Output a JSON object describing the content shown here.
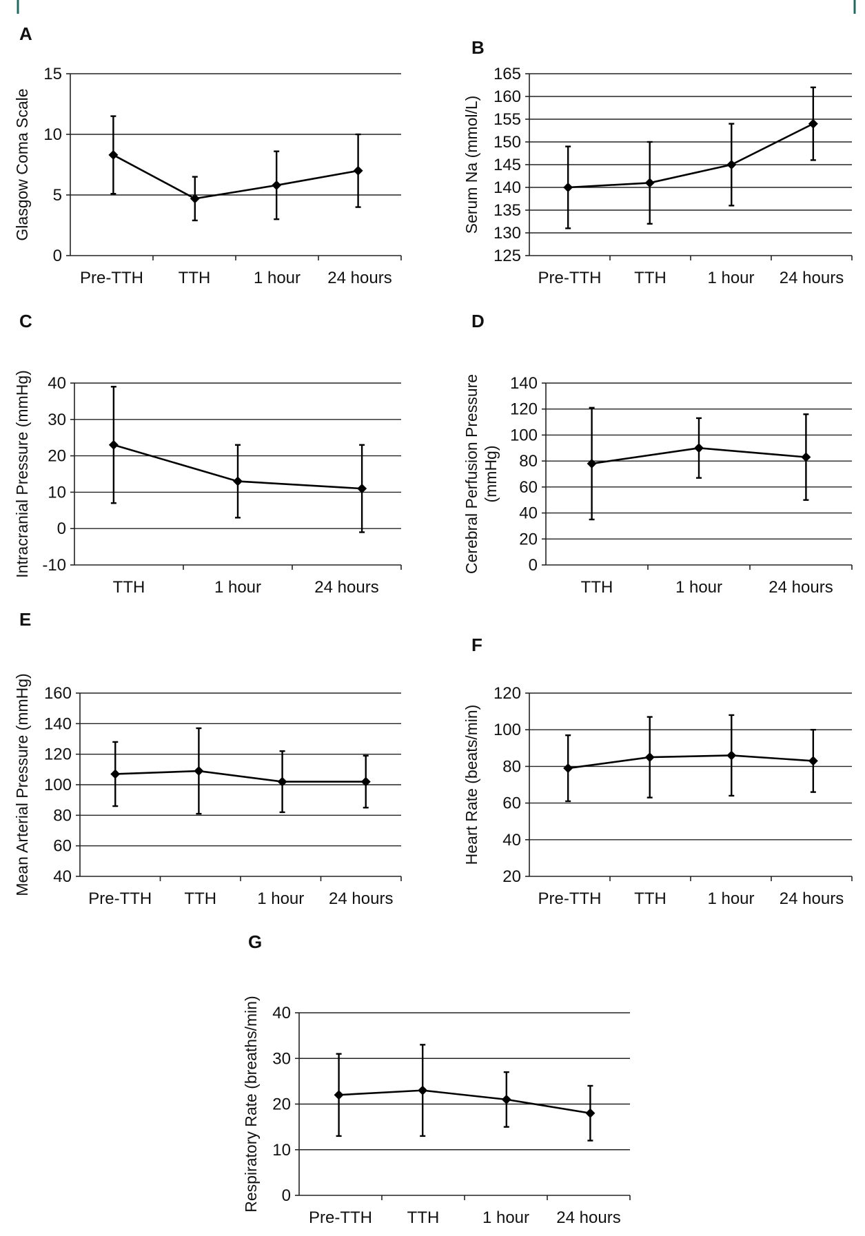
{
  "chart_data": [
    {
      "type": "line",
      "panel": "A",
      "categories": [
        "Pre-TTH",
        "TTH",
        "1 hour",
        "24 hours"
      ],
      "ylabel": [
        "Glasgow Coma Scale"
      ],
      "ylim": [
        0,
        15
      ],
      "yticks": [
        0,
        5,
        10,
        15
      ],
      "grid": true,
      "series": [
        {
          "values": [
            8.3,
            4.7,
            5.8,
            7.0
          ],
          "err_low": [
            5.1,
            2.9,
            3.0,
            4.0
          ],
          "err_high": [
            11.5,
            6.5,
            8.6,
            10.0
          ]
        }
      ]
    },
    {
      "type": "line",
      "panel": "B",
      "categories": [
        "Pre-TTH",
        "TTH",
        "1 hour",
        "24 hours"
      ],
      "ylabel": [
        "Serum Na (mmol/L)"
      ],
      "ylim": [
        125,
        165
      ],
      "yticks": [
        125,
        130,
        135,
        140,
        145,
        150,
        155,
        160,
        165
      ],
      "grid": true,
      "series": [
        {
          "values": [
            140,
            141,
            145,
            154
          ],
          "err_low": [
            131,
            132,
            136,
            146
          ],
          "err_high": [
            149,
            150,
            154,
            162
          ]
        }
      ]
    },
    {
      "type": "line",
      "panel": "C",
      "categories": [
        "TTH",
        "1 hour",
        "24 hours"
      ],
      "ylabel": [
        "Intracranial Pressure (mmHg)"
      ],
      "ylim": [
        -10,
        40
      ],
      "yticks": [
        -10,
        0,
        10,
        20,
        30,
        40
      ],
      "grid": true,
      "series": [
        {
          "values": [
            23,
            13,
            11
          ],
          "err_low": [
            7,
            3,
            -1
          ],
          "err_high": [
            39,
            23,
            23
          ]
        }
      ]
    },
    {
      "type": "line",
      "panel": "D",
      "categories": [
        "TTH",
        "1 hour",
        "24 hours"
      ],
      "ylabel": [
        "Cerebral Perfusion Pressure",
        "(mmHg)"
      ],
      "ylim": [
        0,
        140
      ],
      "yticks": [
        0,
        20,
        40,
        60,
        80,
        100,
        120,
        140
      ],
      "grid": true,
      "series": [
        {
          "values": [
            78,
            90,
            83
          ],
          "err_low": [
            35,
            67,
            50
          ],
          "err_high": [
            121,
            113,
            116
          ]
        }
      ]
    },
    {
      "type": "line",
      "panel": "E",
      "categories": [
        "Pre-TTH",
        "TTH",
        "1 hour",
        "24 hours"
      ],
      "ylabel": [
        "Mean Arterial Pressure (mmHg)"
      ],
      "ylim": [
        40,
        160
      ],
      "yticks": [
        40,
        60,
        80,
        100,
        120,
        140,
        160
      ],
      "grid": true,
      "series": [
        {
          "values": [
            107,
            109,
            102,
            102
          ],
          "err_low": [
            86,
            81,
            82,
            85
          ],
          "err_high": [
            128,
            137,
            122,
            119
          ]
        }
      ]
    },
    {
      "type": "line",
      "panel": "F",
      "categories": [
        "Pre-TTH",
        "TTH",
        "1 hour",
        "24 hours"
      ],
      "ylabel": [
        "Heart Rate (beats/min)"
      ],
      "ylim": [
        20,
        120
      ],
      "yticks": [
        20,
        40,
        60,
        80,
        100,
        120
      ],
      "grid": true,
      "series": [
        {
          "values": [
            79,
            85,
            86,
            83
          ],
          "err_low": [
            61,
            63,
            64,
            66
          ],
          "err_high": [
            97,
            107,
            108,
            100
          ]
        }
      ]
    },
    {
      "type": "line",
      "panel": "G",
      "categories": [
        "Pre-TTH",
        "TTH",
        "1 hour",
        "24 hours"
      ],
      "ylabel": [
        "Respiratory Rate (breaths/min)"
      ],
      "ylim": [
        0,
        40
      ],
      "yticks": [
        0,
        10,
        20,
        30,
        40
      ],
      "grid": true,
      "series": [
        {
          "values": [
            22,
            23,
            21,
            18
          ],
          "err_low": [
            13,
            13,
            15,
            12
          ],
          "err_high": [
            31,
            33,
            27,
            24
          ]
        }
      ]
    }
  ]
}
